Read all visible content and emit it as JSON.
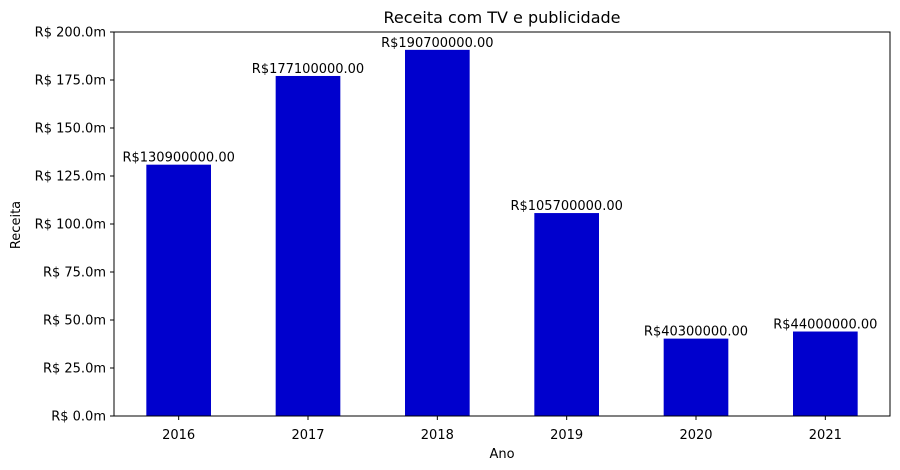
{
  "chart_data": {
    "type": "bar",
    "title": "Receita com TV e publicidade",
    "xlabel": "Ano",
    "ylabel": "Receita",
    "categories": [
      "2016",
      "2017",
      "2018",
      "2019",
      "2020",
      "2021"
    ],
    "values": [
      130900000,
      177100000,
      190700000,
      105700000,
      40300000,
      44000000
    ],
    "data_labels": [
      "R$130900000.00",
      "R$177100000.00",
      "R$190700000.00",
      "R$105700000.00",
      "R$40300000.00",
      "R$44000000.00"
    ],
    "ylim": [
      0,
      200000000
    ],
    "yticks": [
      0,
      25000000,
      50000000,
      75000000,
      100000000,
      125000000,
      150000000,
      175000000,
      200000000
    ],
    "ytick_labels": [
      "R$ 0.0m",
      "R$ 25.0m",
      "R$ 50.0m",
      "R$ 75.0m",
      "R$ 100.0m",
      "R$ 125.0m",
      "R$ 150.0m",
      "R$ 175.0m",
      "R$ 200.0m"
    ],
    "bar_color": "#0000cd",
    "grid": false,
    "legend": "none"
  }
}
